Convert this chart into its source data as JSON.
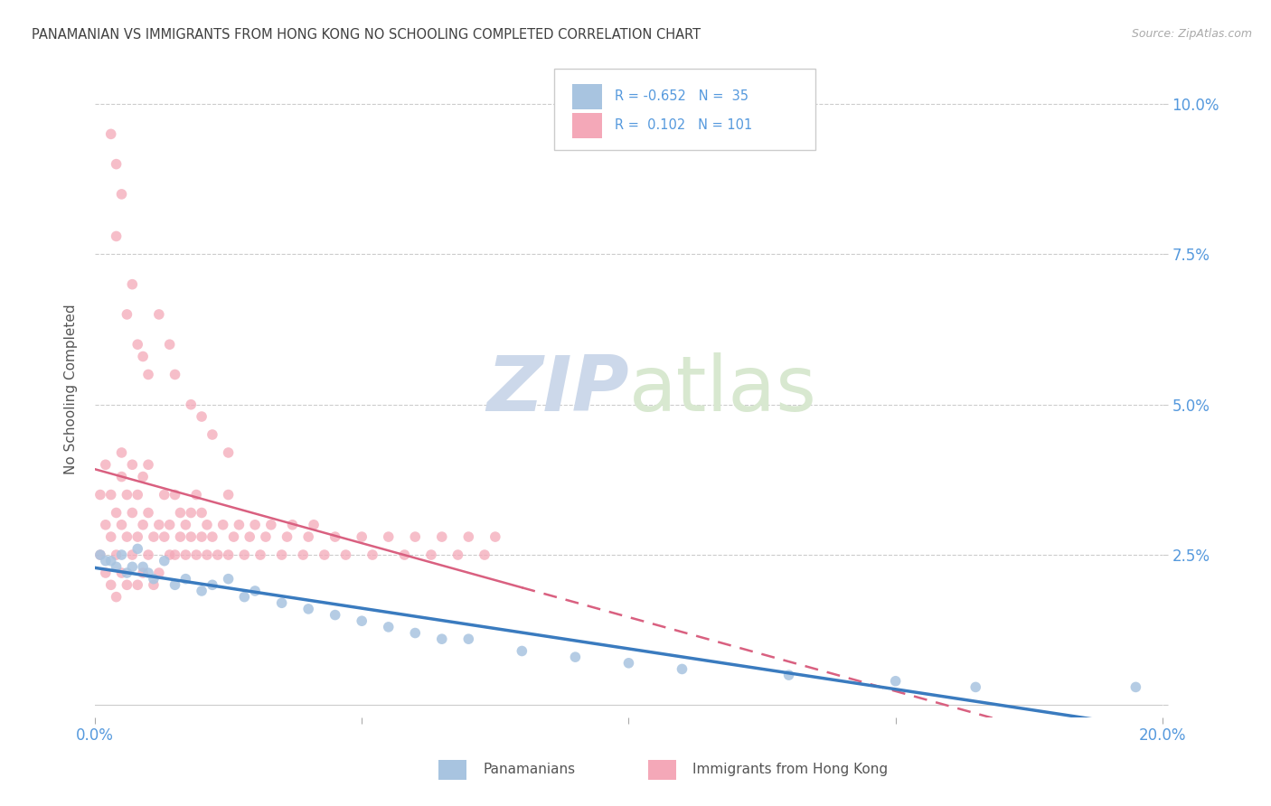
{
  "title": "PANAMANIAN VS IMMIGRANTS FROM HONG KONG NO SCHOOLING COMPLETED CORRELATION CHART",
  "source": "Source: ZipAtlas.com",
  "ylabel": "No Schooling Completed",
  "xlim": [
    0.0,
    0.2
  ],
  "ylim": [
    -0.002,
    0.107
  ],
  "blue_color": "#a8c4e0",
  "pink_color": "#f4a8b8",
  "trend_blue_color": "#3a7bbf",
  "trend_pink_color": "#d96080",
  "background_color": "#ffffff",
  "grid_color": "#cccccc",
  "title_color": "#404040",
  "axis_label_color": "#5599dd",
  "watermark_zip": "ZIP",
  "watermark_atlas": "atlas",
  "watermark_color": "#ccd8ea",
  "legend_blue_label": "Panamanians",
  "legend_pink_label": "Immigrants from Hong Kong",
  "blue_R": "-0.652",
  "blue_N": "35",
  "pink_R": "0.102",
  "pink_N": "101"
}
